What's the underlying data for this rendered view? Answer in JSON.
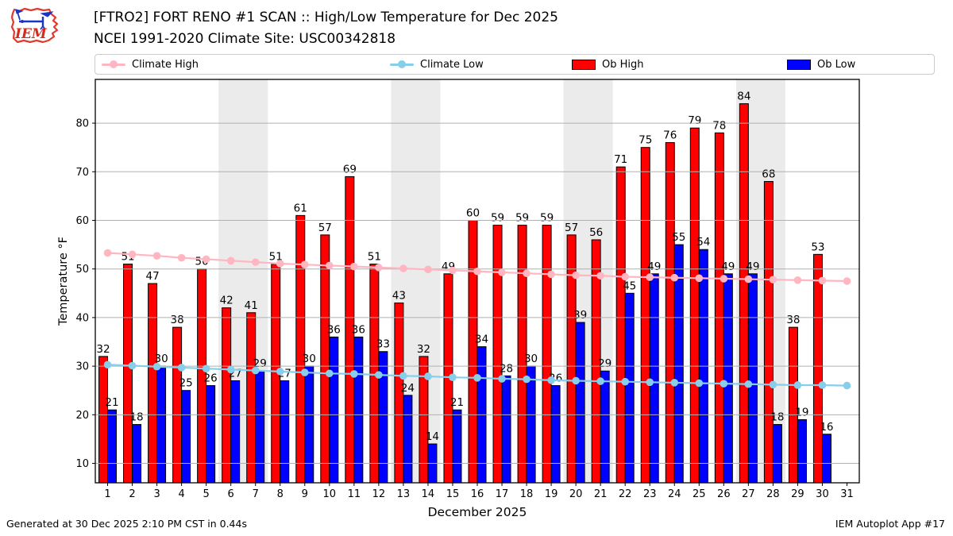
{
  "header": {
    "title_line1": "[FTRO2] FORT RENO #1 SCAN :: High/Low Temperature for Dec 2025",
    "title_line2": "NCEI 1991-2020 Climate Site: USC00342818",
    "logo_text": "IEM"
  },
  "legend": {
    "items": [
      {
        "label": "Climate High",
        "type": "line",
        "color": "#ffb6c1"
      },
      {
        "label": "Climate Low",
        "type": "line",
        "color": "#87ceeb"
      },
      {
        "label": "Ob High",
        "type": "patch",
        "color": "#ff0000"
      },
      {
        "label": "Ob Low",
        "type": "patch",
        "color": "#0000ff"
      }
    ]
  },
  "chart_data": {
    "type": "bar",
    "title": "[FTRO2] FORT RENO #1 SCAN :: High/Low Temperature for Dec 2025",
    "xlabel": "December 2025",
    "ylabel": "Temperature °F",
    "x": [
      1,
      2,
      3,
      4,
      5,
      6,
      7,
      8,
      9,
      10,
      11,
      12,
      13,
      14,
      15,
      16,
      17,
      18,
      19,
      20,
      21,
      22,
      23,
      24,
      25,
      26,
      27,
      28,
      29,
      30,
      31
    ],
    "series": [
      {
        "name": "Ob High",
        "type": "bar",
        "color": "#ff0000",
        "values": [
          32,
          51,
          47,
          38,
          50,
          42,
          41,
          51,
          61,
          57,
          69,
          51,
          43,
          32,
          49,
          60,
          59,
          59,
          59,
          57,
          56,
          71,
          75,
          76,
          79,
          78,
          84,
          68,
          38,
          53,
          null
        ]
      },
      {
        "name": "Ob Low",
        "type": "bar",
        "color": "#0000ff",
        "values": [
          21,
          18,
          30,
          25,
          26,
          27,
          29,
          27,
          30,
          36,
          36,
          33,
          24,
          14,
          21,
          34,
          28,
          30,
          26,
          39,
          29,
          45,
          49,
          55,
          54,
          49,
          49,
          18,
          19,
          16,
          null
        ]
      },
      {
        "name": "Climate High",
        "type": "line",
        "color": "#ffb6c1",
        "values": [
          53.3,
          53.0,
          52.7,
          52.3,
          52.0,
          51.7,
          51.4,
          51.1,
          50.9,
          50.7,
          50.5,
          50.3,
          50.1,
          49.9,
          49.7,
          49.5,
          49.3,
          49.1,
          48.9,
          48.7,
          48.6,
          48.4,
          48.3,
          48.2,
          48.1,
          48.0,
          47.9,
          47.8,
          47.7,
          47.6,
          47.5
        ]
      },
      {
        "name": "Climate Low",
        "type": "line",
        "color": "#87ceeb",
        "values": [
          30.3,
          30.1,
          29.9,
          29.7,
          29.5,
          29.3,
          29.1,
          28.9,
          28.7,
          28.5,
          28.4,
          28.2,
          28.0,
          27.9,
          27.7,
          27.6,
          27.4,
          27.3,
          27.1,
          27.0,
          26.9,
          26.8,
          26.7,
          26.6,
          26.5,
          26.4,
          26.3,
          26.2,
          26.1,
          26.1,
          26.0
        ]
      }
    ],
    "ylim": [
      6,
      89
    ],
    "yticks": [
      10,
      20,
      30,
      40,
      50,
      60,
      70,
      80
    ],
    "grid": true,
    "gridline_color": "#b0b0b0",
    "weekend_bands": [
      [
        6,
        7
      ],
      [
        13,
        14
      ],
      [
        20,
        21
      ],
      [
        27,
        28
      ]
    ],
    "band_color": "#ebebeb",
    "legend_position": "top"
  },
  "footer": {
    "left": "Generated at 30 Dec 2025 2:10 PM CST in 0.44s",
    "right": "IEM Autoplot App #17"
  }
}
